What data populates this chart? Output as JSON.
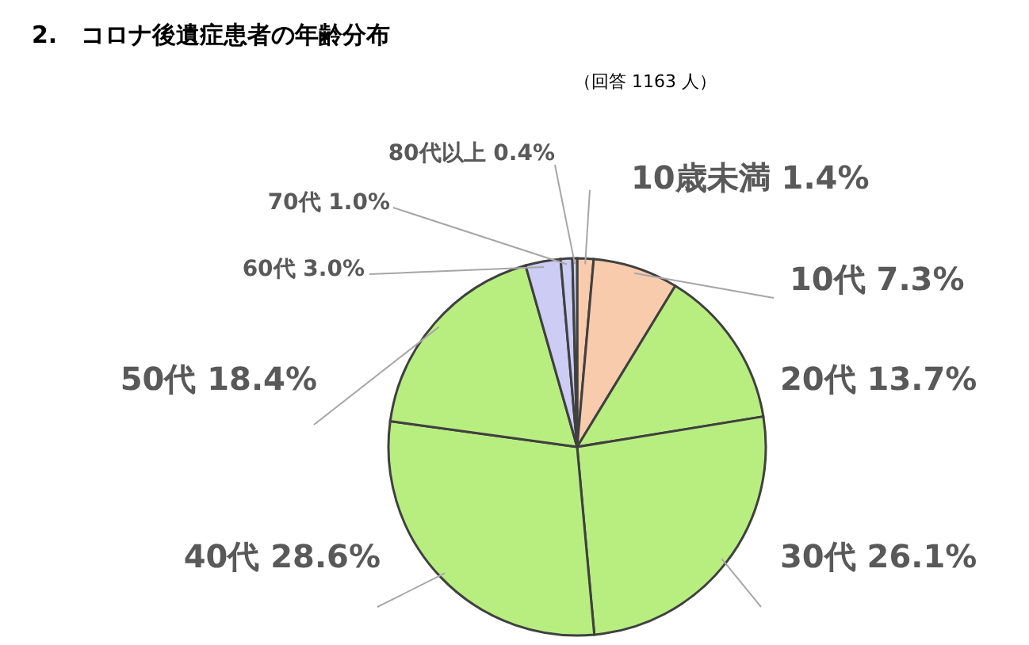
{
  "chart_data": {
    "type": "pie",
    "title": "2.　コロナ後遺症患者の年齢分布",
    "subtitle": "（回答 1163 人）",
    "categories": [
      "10歳未満",
      "10代",
      "20代",
      "30代",
      "40代",
      "50代",
      "60代",
      "70代",
      "80代以上"
    ],
    "values": [
      1.4,
      7.3,
      13.7,
      26.1,
      28.6,
      18.4,
      3.0,
      1.0,
      0.4
    ],
    "value_labels": [
      "1.4%",
      "7.3%",
      "13.7%",
      "26.1%",
      "28.6%",
      "18.4%",
      "3.0%",
      "1.0%",
      "0.4%"
    ],
    "colors": [
      "#f8cbad",
      "#f8cbad",
      "#b8ee80",
      "#b8ee80",
      "#b8ee80",
      "#b8ee80",
      "#ccccf4",
      "#ccccf4",
      "#ccccf4"
    ]
  }
}
